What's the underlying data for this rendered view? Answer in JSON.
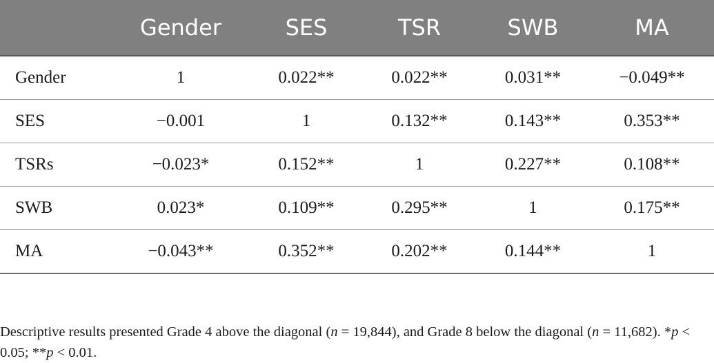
{
  "table": {
    "headers": [
      "",
      "Gender",
      "SES",
      "TSR",
      "SWB",
      "MA"
    ],
    "rows": [
      {
        "label": "Gender",
        "cells": [
          "1",
          "0.022**",
          "0.022**",
          "0.031**",
          "−0.049**"
        ]
      },
      {
        "label": "SES",
        "cells": [
          "−0.001",
          "1",
          "0.132**",
          "0.143**",
          "0.353**"
        ]
      },
      {
        "label": "TSRs",
        "cells": [
          "−0.023*",
          "0.152**",
          "1",
          "0.227**",
          "0.108**"
        ]
      },
      {
        "label": "SWB",
        "cells": [
          "0.023*",
          "0.109**",
          "0.295**",
          "1",
          "0.175**"
        ]
      },
      {
        "label": "MA",
        "cells": [
          "−0.043**",
          "0.352**",
          "0.202**",
          "0.144**",
          "1"
        ]
      }
    ]
  },
  "note": {
    "part1": "Descriptive results presented Grade 4 above the diagonal (",
    "n1_var": "n",
    "n1_val": " = 19,844), and Grade 8 below the diagonal (",
    "n2_var": "n",
    "n2_val": " = 11,682). *",
    "p1_var": "p",
    "p1_val": " < 0.05; **",
    "p2_var": "p",
    "p2_val": " < 0.01."
  }
}
